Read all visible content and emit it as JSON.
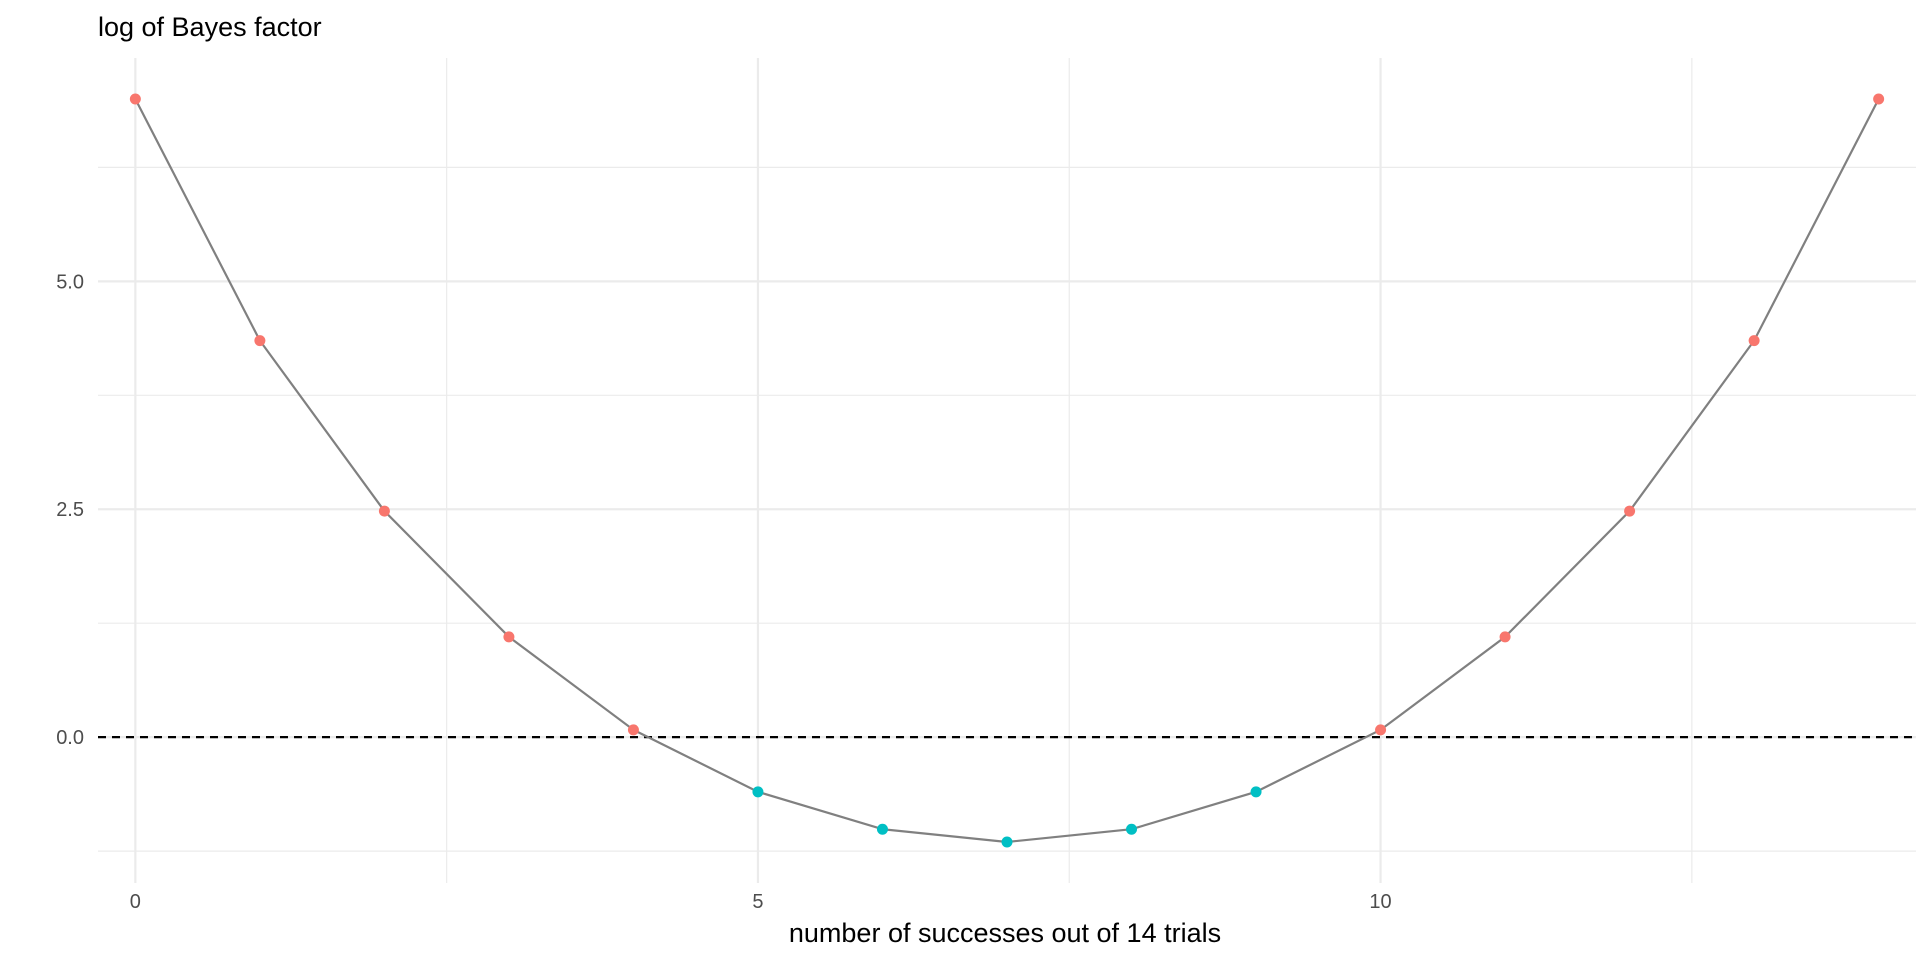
{
  "chart_data": {
    "type": "line",
    "title": "",
    "ylabel": "log of Bayes factor",
    "xlabel": "number of successes out of 14 trials",
    "xlim": [
      -0.3,
      14.3
    ],
    "ylim": [
      -1.6,
      7.45
    ],
    "x_ticks": [
      {
        "value": 0,
        "label": "0"
      },
      {
        "value": 5,
        "label": "5"
      },
      {
        "value": 10,
        "label": "10"
      }
    ],
    "x_minor_ticks": [
      2.5,
      7.5,
      12.5
    ],
    "y_ticks": [
      {
        "value": 0,
        "label": "0.0"
      },
      {
        "value": 2.5,
        "label": "2.5"
      },
      {
        "value": 5,
        "label": "5.0"
      }
    ],
    "y_minor_ticks": [
      -1.25,
      1.25,
      3.75,
      6.25
    ],
    "grid": true,
    "reference_line": {
      "y": 0,
      "style": "dashed",
      "color": "#000000"
    },
    "line_color": "#808080",
    "point_colors": {
      "positive": "#F8766D",
      "negative": "#00BFC4"
    },
    "series": [
      {
        "x": [
          0,
          1,
          2,
          3,
          4,
          5,
          6,
          7,
          8,
          9,
          10,
          11,
          12,
          13,
          14
        ],
        "values": [
          7.0,
          4.35,
          2.48,
          1.1,
          0.08,
          -0.6,
          -1.01,
          -1.15,
          -1.01,
          -0.6,
          0.08,
          1.1,
          2.48,
          4.35,
          7.0
        ]
      }
    ]
  }
}
